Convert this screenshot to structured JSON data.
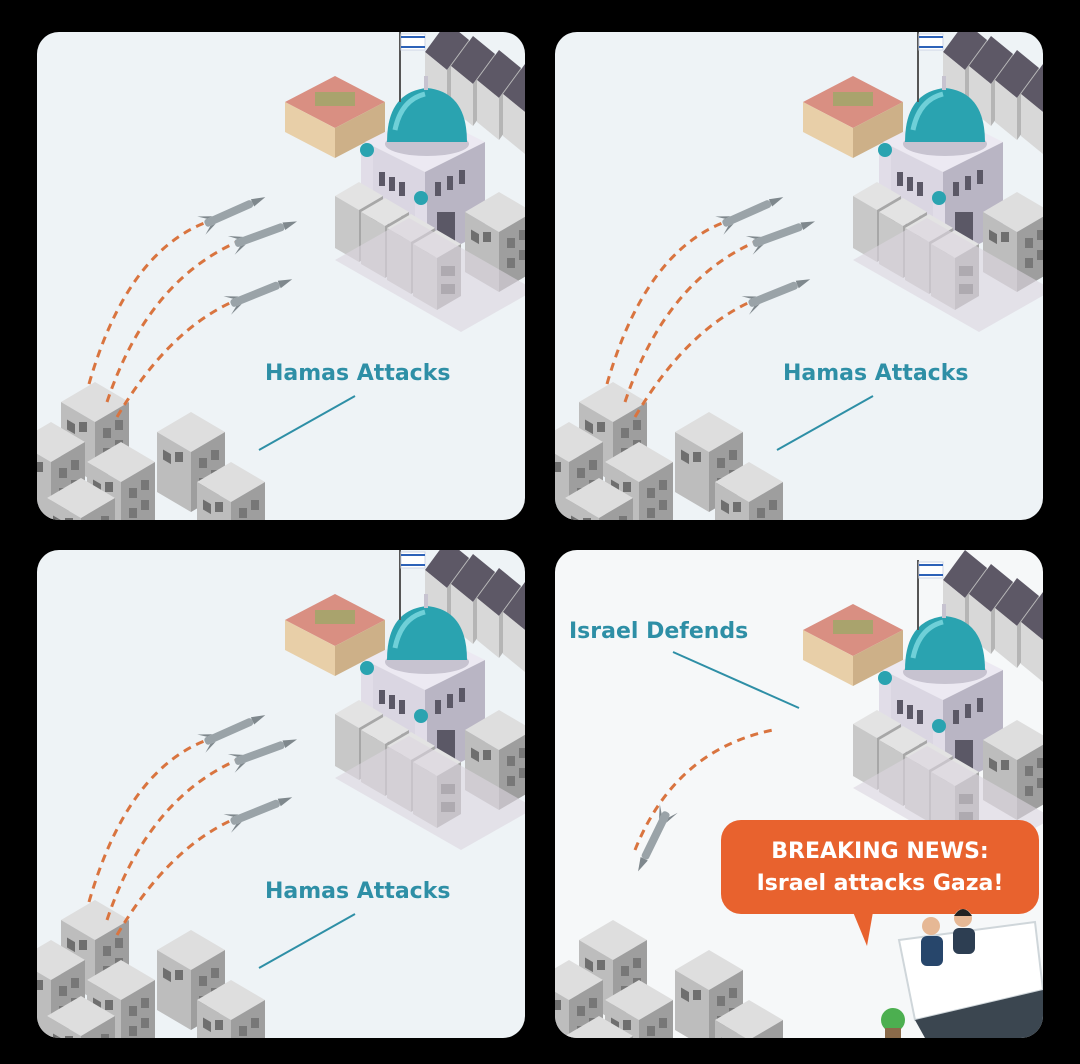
{
  "panels": [
    {
      "label": "Hamas Attacks"
    },
    {
      "label": "Hamas Attacks"
    },
    {
      "label": "Hamas Attacks"
    },
    {
      "label": "Israel Defends",
      "bubble_line1": "BREAKING NEWS:",
      "bubble_line2": "Israel attacks Gaza!"
    }
  ],
  "colors": {
    "background": "#000000",
    "panel": "#eef3f6",
    "label": "#2e8fa6",
    "trail": "#d9743f",
    "bubble": "#e8622e",
    "dome": "#2aa3b0"
  }
}
